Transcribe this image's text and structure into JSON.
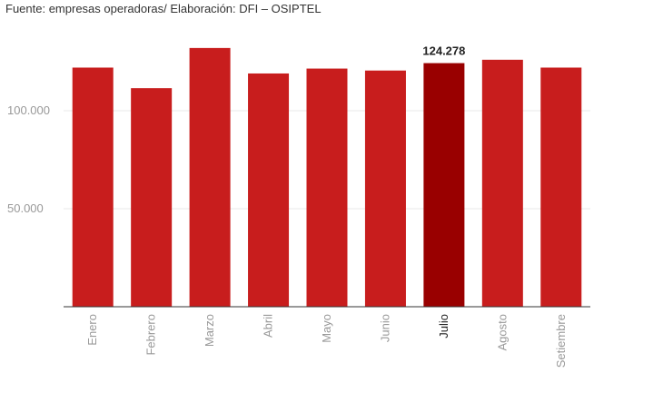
{
  "source": "Fuente: empresas operadoras/ Elaboración: DFI – OSIPTEL",
  "colors": {
    "bar": "#c81d1d",
    "highlight": "#990000",
    "axis": "#333333",
    "grid": "#e8e8e8",
    "tick_label": "#999999",
    "highlight_label": "#222222"
  },
  "chart_data": {
    "type": "bar",
    "categories": [
      "Enero",
      "Febrero",
      "Marzo",
      "Abril",
      "Mayo",
      "Junio",
      "Julio",
      "Agosto",
      "Setiembre"
    ],
    "values": [
      122000,
      111500,
      132000,
      119000,
      121500,
      120500,
      124278,
      126000,
      122000
    ],
    "highlight_index": 6,
    "highlight_label": "124.278",
    "y_ticks": [
      50000,
      100000
    ],
    "y_tick_labels": [
      "50.000",
      "100.000"
    ],
    "ylim": [
      0,
      140000
    ],
    "grid": true,
    "title": "",
    "xlabel": "",
    "ylabel": ""
  }
}
